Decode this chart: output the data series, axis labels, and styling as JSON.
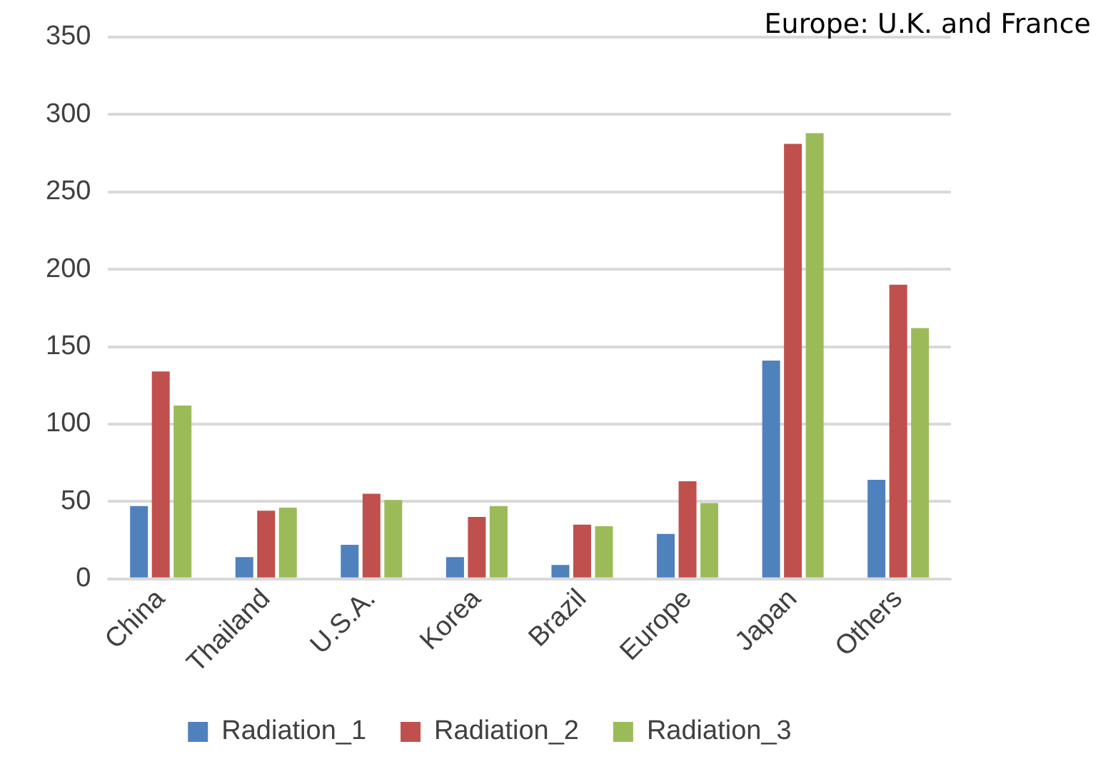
{
  "chart_data": {
    "type": "bar",
    "categories": [
      "China",
      "Thailand",
      "U.S.A.",
      "Korea",
      "Brazil",
      "Europe",
      "Japan",
      "Others"
    ],
    "series": [
      {
        "name": "Radiation_1",
        "color": "#4f81bd",
        "values": [
          47,
          14,
          22,
          14,
          9,
          29,
          141,
          64
        ]
      },
      {
        "name": "Radiation_2",
        "color": "#c0504d",
        "values": [
          134,
          44,
          55,
          40,
          35,
          63,
          281,
          190
        ]
      },
      {
        "name": "Radiation_3",
        "color": "#9bbb59",
        "values": [
          112,
          46,
          51,
          47,
          34,
          49,
          288,
          162
        ]
      }
    ],
    "ylim": [
      0,
      350
    ],
    "yticks": [
      0,
      50,
      100,
      150,
      200,
      250,
      300,
      350
    ],
    "grid": "y",
    "legend": "bottom",
    "annotations": [
      "Europe: U.K. and France"
    ]
  }
}
